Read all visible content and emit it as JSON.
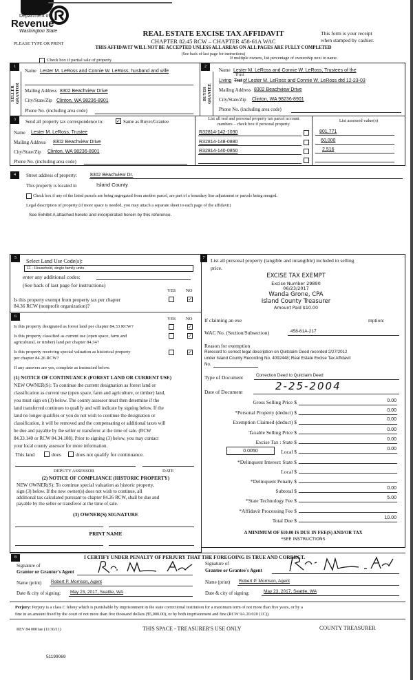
{
  "header": {
    "logo": {
      "line1": "Department of",
      "line2": "Revenue",
      "line3": "Washington State"
    },
    "title": "REAL ESTATE EXCISE TAX AFFIDAVIT",
    "chapter": "CHAPTER 82.45 RCW – CHAPTER 458-61A WAC",
    "please_type": "PLEASE TYPE OR PRINT",
    "receipt_line1": "This form is your receipt",
    "receipt_line2": "when stamped by cashier.",
    "warning": "THIS AFFIDAVIT WILL NOT BE ACCEPTED UNLESS ALL AREAS ON ALL PAGES ARE FULLY COMPLETED",
    "instructions": "(See back of last page for instructions)",
    "partial_sale_label": "Check box if partial sale of property",
    "partial_sale_checked": false,
    "multiple_owners": "If multiple owners, list percentage of ownership next to name."
  },
  "seller": {
    "number": "1",
    "side_label_1": "SELLER",
    "side_label_2": "GRANTOR",
    "name_label": "Name",
    "name": "Lester M. LeRoss and Connie W. LeRoss, husband and wife",
    "mailing_label": "Mailing Address",
    "mailing": "8302 Beachview Drive",
    "city_label": "City/State/Zip",
    "city": "Clinton, WA 98236-8901",
    "phone_label": "Phone No. (including area code)",
    "phone": ""
  },
  "buyer": {
    "number": "2",
    "side_label_1": "BUYER",
    "side_label_2": "GRANTEE",
    "name_label": "Name",
    "name": "Lester M. LeRoss and Connie W. LeRoss, Trustees of the",
    "name_line2_prefix": "Living",
    "name_line2_struck": "Trst",
    "name_line2_insert": "Trust",
    "name_line2_rest": "of Lester M. LeRoss and Connie W. LeRoss dtd 12-23-03",
    "mailing_label": "Mailing Address",
    "mailing": "8302 Beachview Drive",
    "city_label": "City/State/Zip",
    "city": "Clinton, WA 98236-8901",
    "phone_label": "Phone No. (including area code)",
    "phone": ""
  },
  "correspondence": {
    "number": "3",
    "label": "Send all property tax correspondence to:",
    "same_label": "Same as Buyer/Grantee",
    "same_checked": true,
    "name_label": "Name",
    "name": "Lester M. LeRoss, Trustee",
    "mailing_label": "Mailing Address",
    "mailing": "8302 Beachview Drive",
    "city_label": "City/State/Zip",
    "city": "Clinton, WA 98236-8901",
    "phone_label": "Phone No. (including area code)",
    "parcels_header_1": "List all real and personal property tax parcel account",
    "parcels_header_2": "numbers – check box if personal property",
    "assessed_header": "List assessed value(s)",
    "parcels": [
      {
        "number": "R32814-142-1030",
        "personal": false,
        "value": "801,771"
      },
      {
        "number": "R32814-148-0880",
        "personal": false,
        "value": "60,000"
      },
      {
        "number": "R32814-140-0850",
        "personal": false,
        "value": "2,516"
      },
      {
        "number": "",
        "personal": false,
        "value": ""
      }
    ]
  },
  "property": {
    "number": "4",
    "street_label": "Street address of property:",
    "street": "8302 Beachview Dr.",
    "located_label": "This property is located in",
    "county": "Island County",
    "segregated_label": "Check box if any of the listed parcels are being segregated from another parcel, are part of a boundary line adjustment or parcels being merged.",
    "segregated_checked": false,
    "legal_label": "Legal description of property (if more space is needed, you may attach a separate sheet to each page of the affidavit)",
    "legal": "See Exhibit A attached hereto and incorporated herein by this reference."
  },
  "land_use": {
    "number": "5",
    "label": "Select Land Use Code(s):",
    "code": "11 - Household, single family units",
    "additional_label": "enter any additional codes:",
    "see_back": "(See back of last page for instructions)",
    "yes": "YES",
    "no": "NO",
    "exempt_q1": "Is this property exempt from property tax per chapter",
    "exempt_q2": "84.36 RCW (nonprofit organization)?",
    "exempt_answer": "no"
  },
  "designation": {
    "number": "6",
    "yes": "YES",
    "no": "NO",
    "questions": [
      {
        "line1": "Is this property designated as forest land per chapter 84.33 RCW?",
        "line2": "",
        "answer": "no"
      },
      {
        "line1": "Is this property classified as current use (open space, farm and",
        "line2": "agricultural, or timber) land per chapter 84.34?",
        "answer": "no"
      },
      {
        "line1": "Is this property receiving special valuation as historical property",
        "line2": "per chapter 84.26 RCW?",
        "answer": "no"
      }
    ],
    "if_yes": "If any answers are yes, complete as instructed below.",
    "continuance_title": "(1) NOTICE OF CONTINUANCE (FOREST LAND OR CURRENT USE)",
    "continuance_lines": [
      "NEW OWNER(S): To continue the current designation as forest land or",
      "classification as current use (open space, farm and agriculture, or timber) land,",
      "you must sign on (3) below. The county assessor must then determine if the",
      "land transferred continues to qualify and will indicate by signing below. If the",
      "land no longer qualifies or you do not wish to continue the designation or",
      "classification, it will be removed and the compensating or additional taxes will",
      "be due and payable by the seller or transferor at the time of sale. (RCW",
      "84.33.140 or RCW 84.34.108). Prior to signing (3) below, you may contact",
      "your local county assessor for more information."
    ],
    "this_land": "This land",
    "does": "does",
    "does_not": "does not qualify for continuance.",
    "deputy_assessor": "DEPUTY ASSESSOR",
    "date": "DATE",
    "compliance_title": "(2) NOTICE OF COMPLIANCE (HISTORIC PROPERTY)",
    "compliance_lines": [
      "NEW OWNER(S): To continue special valuation as historic property,",
      "sign (3) below. If the new owner(s) does not wish to continue, all",
      "additional tax calculated pursuant to chapter 84.26 RCW, shall be due and",
      "payable by the seller or transferor at the time of sale."
    ],
    "owner_signature": "(3) OWNER(S) SIGNATURE",
    "print_name": "PRINT NAME"
  },
  "personal_property": {
    "number": "7",
    "label_line1": "List all  personal property (tangible and intangible) included in selling",
    "label_line2": "price.",
    "stamp": {
      "line1": "EXCISE TAX EXEMPT",
      "line2": "Excise Number 29890",
      "line3": "06/23/2017",
      "line4": "Wanda Grone, CPA",
      "line5": "Island County Treasurer",
      "line6": "Amount Paid $10.00"
    },
    "claiming_start": "If claiming an exe",
    "claiming_end": "mption:",
    "wac_label": "WAC No. (Section/Subsection)",
    "wac": "458-61A-217",
    "reason_label": "Reason for exemption",
    "reason_line1": "Rerecord to correct legal description on Quitclaim Deed recorded 2/27/2012",
    "reason_line2": "under Island County Recording No. 4092448; Real Estate Excise Tax Affidavit",
    "reason_line3": "No.",
    "doc_type_label": "Type of Document",
    "doc_type": "Correction Deed to Quitclaim Deed",
    "doc_date_label": "Date of Document",
    "doc_date": "2-25-2004",
    "fees": [
      {
        "label": "Gross Selling Price $",
        "value": "0.00"
      },
      {
        "label": "*Personal Property (deduct) $",
        "value": "0.00"
      },
      {
        "label": "Exemption Claimed (deduct) $",
        "value": "0.00"
      },
      {
        "label": "Taxable Selling Price $",
        "value": "0.00"
      },
      {
        "label": "Excise Tax : State $",
        "value": "0.00"
      },
      {
        "label": "Local $",
        "value": "0.00"
      },
      {
        "label": "*Delinquent Interest: State $",
        "value": ""
      },
      {
        "label": "Local $",
        "value": ""
      },
      {
        "label": "*Delinquent Penalty $",
        "value": ""
      },
      {
        "label": "Subtotal $",
        "value": "0.00"
      },
      {
        "label": "*State Technology Fee $",
        "value": "5.00"
      },
      {
        "label": "*Affidavit Processing Fee $",
        "value": ""
      },
      {
        "label": "Total Due $",
        "value": "10.00"
      }
    ],
    "local_rate": "0.0050",
    "minimum": "A MINIMUM OF $10.00 IS DUE IN FEE(S) AND/OR TAX",
    "see_instructions": "*SEE INSTRUCTIONS"
  },
  "certification": {
    "number": "8",
    "statement": "I CERTIFY UNDER PENALTY OF PERJURY THAT THE FOREGOING IS TRUE AND CORRECT.",
    "grantor_sig_label1": "Signature of",
    "grantor_sig_label2": "Grantor or Grantor's Agent",
    "grantor_name_label": "Name (print)",
    "grantor_name": "Robert P. Morrison, Agent",
    "grantor_date_label": "Date & city of signing:",
    "grantor_date": "May 23, 2017, Seattle, WA",
    "grantee_sig_label1": "Signature of",
    "grantee_sig_label2": "Grantee or Grantee's Agent",
    "grantee_name_label": "Name (print)",
    "grantee_name": "Robert P. Morrison, Agent",
    "grantee_date_label": "Date & city of signing:",
    "grantee_date": "May 23, 2017, Seattle, WA"
  },
  "perjury": {
    "label": "Perjury:",
    "text_line1": "Perjury is a class C felony which is punishable by imprisonment in the state correctional institution for a maximum term of not more than five years, or by a",
    "text_line2": "fine in an amount fixed by the court of not more than five thousand dollars ($5,000.00), or by both imprisonment and fine (RCW 9A.20.020 (1C))."
  },
  "footer": {
    "form_number": "REV 84 0001ae (11/30/11)",
    "treasurer_use": "THIS SPACE - TREASURER'S USE ONLY",
    "county_treasurer": "COUNTY TREASURER",
    "doc_number": "51199069"
  }
}
